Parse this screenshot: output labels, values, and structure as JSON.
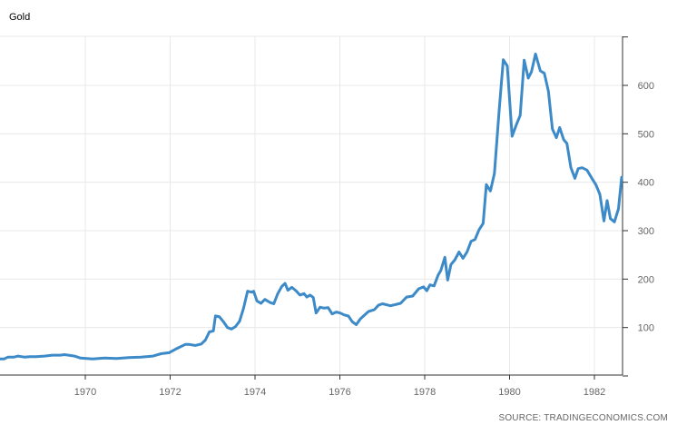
{
  "title": "Gold",
  "source": "SOURCE: TRADINGECONOMICS.COM",
  "colors": {
    "line": "#3d8ac8",
    "grid": "#e8e8e8",
    "axis": "#333333",
    "tick_label": "#666666"
  },
  "chart_data": {
    "type": "line",
    "title": "Gold",
    "xlabel": "",
    "ylabel": "",
    "xlim": [
      1968.0,
      1982.65
    ],
    "ylim": [
      0,
      700
    ],
    "x_ticks": [
      1970,
      1972,
      1974,
      1976,
      1978,
      1980,
      1982
    ],
    "y_ticks": [
      100,
      200,
      300,
      400,
      500,
      600
    ],
    "y_axis_side": "right",
    "grid": true,
    "legend": "none",
    "series": [
      {
        "name": "",
        "points": [
          [
            1968.0,
            35
          ],
          [
            1968.1,
            35
          ],
          [
            1968.2,
            39
          ],
          [
            1968.35,
            39
          ],
          [
            1968.45,
            41
          ],
          [
            1968.6,
            39
          ],
          [
            1968.75,
            40
          ],
          [
            1968.9,
            40
          ],
          [
            1969.1,
            41
          ],
          [
            1969.3,
            43
          ],
          [
            1969.5,
            43
          ],
          [
            1969.6,
            44
          ],
          [
            1969.7,
            43
          ],
          [
            1969.85,
            41
          ],
          [
            1970.0,
            37
          ],
          [
            1970.3,
            35
          ],
          [
            1970.6,
            37
          ],
          [
            1970.9,
            36
          ],
          [
            1971.2,
            38
          ],
          [
            1971.5,
            39
          ],
          [
            1971.8,
            41
          ],
          [
            1972.0,
            46
          ],
          [
            1972.2,
            48
          ],
          [
            1972.4,
            57
          ],
          [
            1972.6,
            65
          ],
          [
            1972.7,
            65
          ],
          [
            1972.85,
            63
          ],
          [
            1973.0,
            66
          ],
          [
            1973.1,
            74
          ],
          [
            1973.2,
            91
          ],
          [
            1973.3,
            93
          ],
          [
            1973.35,
            124
          ],
          [
            1973.45,
            122
          ],
          [
            1973.55,
            112
          ],
          [
            1973.65,
            100
          ],
          [
            1973.75,
            97
          ],
          [
            1973.85,
            102
          ],
          [
            1973.95,
            113
          ],
          [
            1974.05,
            140
          ],
          [
            1974.15,
            175
          ],
          [
            1974.25,
            173
          ],
          [
            1974.3,
            175
          ],
          [
            1974.38,
            155
          ],
          [
            1974.48,
            150
          ],
          [
            1974.58,
            158
          ],
          [
            1974.7,
            152
          ],
          [
            1974.8,
            149
          ],
          [
            1974.9,
            170
          ],
          [
            1975.0,
            185
          ],
          [
            1975.08,
            191
          ],
          [
            1975.15,
            177
          ],
          [
            1975.25,
            183
          ],
          [
            1975.35,
            176
          ],
          [
            1975.45,
            167
          ],
          [
            1975.55,
            170
          ],
          [
            1975.62,
            163
          ],
          [
            1975.7,
            167
          ],
          [
            1975.78,
            162
          ],
          [
            1975.85,
            130
          ],
          [
            1975.95,
            142
          ],
          [
            1976.05,
            140
          ],
          [
            1976.15,
            141
          ],
          [
            1976.25,
            128
          ],
          [
            1976.35,
            132
          ],
          [
            1976.45,
            130
          ],
          [
            1976.55,
            126
          ],
          [
            1976.65,
            124
          ],
          [
            1976.75,
            112
          ],
          [
            1976.85,
            106
          ],
          [
            1976.95,
            118
          ],
          [
            1977.15,
            133
          ],
          [
            1977.3,
            137
          ],
          [
            1977.4,
            146
          ],
          [
            1977.5,
            149
          ],
          [
            1977.7,
            145
          ],
          [
            1977.95,
            150
          ],
          [
            1978.1,
            163
          ],
          [
            1978.25,
            165
          ],
          [
            1978.4,
            180
          ],
          [
            1978.52,
            184
          ],
          [
            1978.6,
            176
          ],
          [
            1978.68,
            188
          ],
          [
            1978.78,
            186
          ],
          [
            1978.88,
            208
          ],
          [
            1978.95,
            218
          ],
          [
            1979.05,
            245
          ],
          [
            1979.12,
            198
          ],
          [
            1979.2,
            230
          ],
          [
            1979.3,
            240
          ],
          [
            1979.4,
            256
          ],
          [
            1979.5,
            243
          ],
          [
            1979.6,
            256
          ],
          [
            1979.7,
            278
          ],
          [
            1979.8,
            282
          ],
          [
            1979.9,
            302
          ],
          [
            1980.0,
            315
          ],
          [
            1980.08,
            395
          ],
          [
            1980.18,
            382
          ],
          [
            1980.28,
            418
          ],
          [
            1980.4,
            550
          ],
          [
            1980.5,
            653
          ],
          [
            1980.6,
            640
          ],
          [
            1980.72,
            495
          ],
          [
            1980.82,
            518
          ],
          [
            1980.92,
            538
          ],
          [
            1981.02,
            652
          ],
          [
            1981.12,
            615
          ],
          [
            1981.2,
            628
          ],
          [
            1981.3,
            665
          ],
          [
            1981.42,
            630
          ],
          [
            1981.52,
            625
          ],
          [
            1981.62,
            588
          ],
          [
            1981.72,
            510
          ],
          [
            1981.82,
            492
          ],
          [
            1981.9,
            513
          ],
          [
            1982.0,
            488
          ],
          [
            1982.08,
            480
          ],
          [
            1982.18,
            430
          ],
          [
            1982.28,
            408
          ],
          [
            1982.36,
            428
          ],
          [
            1982.46,
            430
          ],
          [
            1982.58,
            425
          ],
          [
            1982.7,
            408
          ],
          [
            1982.8,
            395
          ],
          [
            1982.9,
            375
          ],
          [
            1983.0,
            320
          ],
          [
            1983.08,
            362
          ],
          [
            1983.16,
            325
          ],
          [
            1983.26,
            318
          ],
          [
            1983.36,
            345
          ],
          [
            1983.44,
            410
          ]
        ]
      }
    ]
  }
}
